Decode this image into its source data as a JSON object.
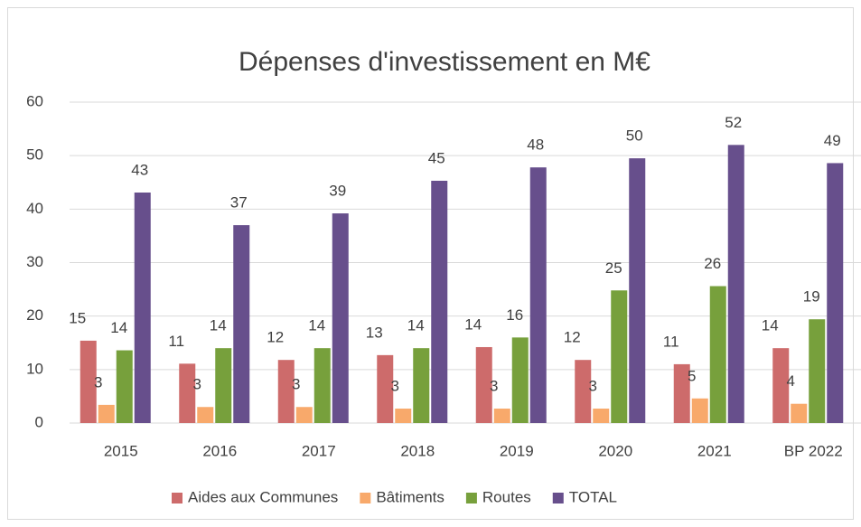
{
  "chart_data": {
    "type": "bar",
    "title": "Dépenses d'investissement en M€",
    "categories": [
      "2015",
      "2016",
      "2017",
      "2018",
      "2019",
      "2020",
      "2021",
      "BP 2022"
    ],
    "series": [
      {
        "name": "Aides aux Communes",
        "color": "#cd6b6b",
        "values": [
          15.4,
          11.1,
          11.8,
          12.7,
          14.2,
          11.8,
          11.0,
          14.0
        ],
        "value_labels": [
          "15",
          "11",
          "12",
          "13",
          "14",
          "12",
          "11",
          "14"
        ]
      },
      {
        "name": "Bâtiments",
        "color": "#f8a96b",
        "values": [
          3.4,
          3.0,
          3.0,
          2.7,
          2.7,
          2.7,
          4.6,
          3.6
        ],
        "value_labels": [
          "3",
          "3",
          "3",
          "3",
          "3",
          "3",
          "5",
          "4"
        ]
      },
      {
        "name": "Routes",
        "color": "#77a03c",
        "values": [
          13.6,
          14.0,
          14.0,
          14.0,
          16.0,
          24.8,
          25.6,
          19.4
        ],
        "value_labels": [
          "14",
          "14",
          "14",
          "14",
          "16",
          "25",
          "26",
          "19"
        ]
      },
      {
        "name": "TOTAL",
        "color": "#674f8c",
        "values": [
          43.1,
          37.0,
          39.2,
          45.3,
          47.8,
          49.5,
          52.0,
          48.6
        ],
        "value_labels": [
          "43",
          "37",
          "39",
          "45",
          "48",
          "50",
          "52",
          "49"
        ]
      }
    ],
    "ylim": [
      0,
      60
    ],
    "yticks": [
      0,
      10,
      20,
      30,
      40,
      50,
      60
    ],
    "grid": true,
    "legend": "bottom"
  }
}
